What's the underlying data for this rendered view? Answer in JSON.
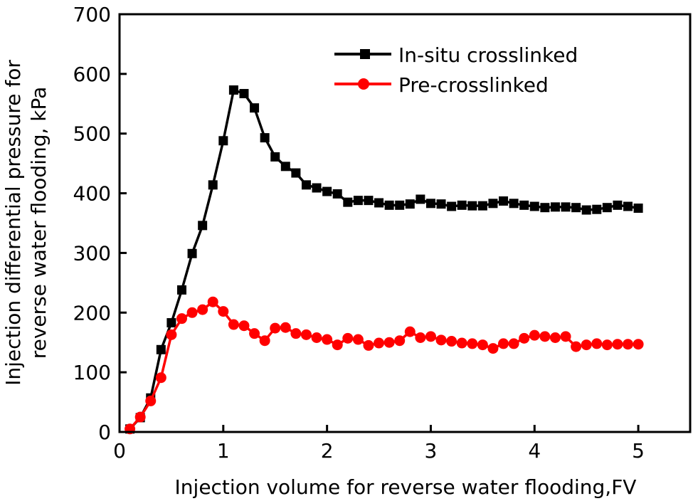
{
  "chart_data": {
    "type": "line",
    "title": "",
    "xlabel": "Injection volume for reverse water flooding,FV",
    "ylabel_lines": [
      "Injection differential pressure for",
      "reverse water flooding, kPa"
    ],
    "xlim": [
      0,
      5.5
    ],
    "ylim": [
      0,
      700
    ],
    "xticks": [
      0,
      1,
      2,
      3,
      4,
      5
    ],
    "yticks": [
      0,
      100,
      200,
      300,
      400,
      500,
      600,
      700
    ],
    "grid": false,
    "legend_position": "top-center",
    "x": [
      0.1,
      0.2,
      0.3,
      0.4,
      0.5,
      0.6,
      0.7,
      0.8,
      0.9,
      1.0,
      1.1,
      1.2,
      1.3,
      1.4,
      1.5,
      1.6,
      1.7,
      1.8,
      1.9,
      2.0,
      2.1,
      2.2,
      2.3,
      2.4,
      2.5,
      2.6,
      2.7,
      2.8,
      2.9,
      3.0,
      3.1,
      3.2,
      3.3,
      3.4,
      3.5,
      3.6,
      3.7,
      3.8,
      3.9,
      4.0,
      4.1,
      4.2,
      4.3,
      4.4,
      4.5,
      4.6,
      4.7,
      4.8,
      4.9,
      5.0
    ],
    "series": [
      {
        "name": "In-situ crosslinked",
        "color": "#000000",
        "marker": "square",
        "values": [
          5,
          24,
          57,
          138,
          183,
          238,
          299,
          346,
          414,
          488,
          573,
          567,
          543,
          493,
          461,
          445,
          434,
          414,
          409,
          403,
          399,
          385,
          388,
          388,
          384,
          380,
          380,
          382,
          390,
          383,
          382,
          378,
          380,
          379,
          379,
          383,
          387,
          383,
          380,
          378,
          376,
          377,
          377,
          376,
          372,
          373,
          376,
          380,
          378,
          375
        ]
      },
      {
        "name": "Pre-crosslinked",
        "color": "#ff0000",
        "marker": "circle",
        "values": [
          5,
          25,
          52,
          91,
          163,
          190,
          200,
          205,
          218,
          202,
          180,
          178,
          165,
          153,
          174,
          175,
          165,
          163,
          158,
          155,
          146,
          157,
          155,
          145,
          149,
          150,
          153,
          168,
          158,
          160,
          154,
          152,
          149,
          148,
          146,
          140,
          148,
          148,
          157,
          162,
          160,
          158,
          160,
          143,
          146,
          148,
          146,
          147,
          147,
          147
        ]
      }
    ]
  }
}
